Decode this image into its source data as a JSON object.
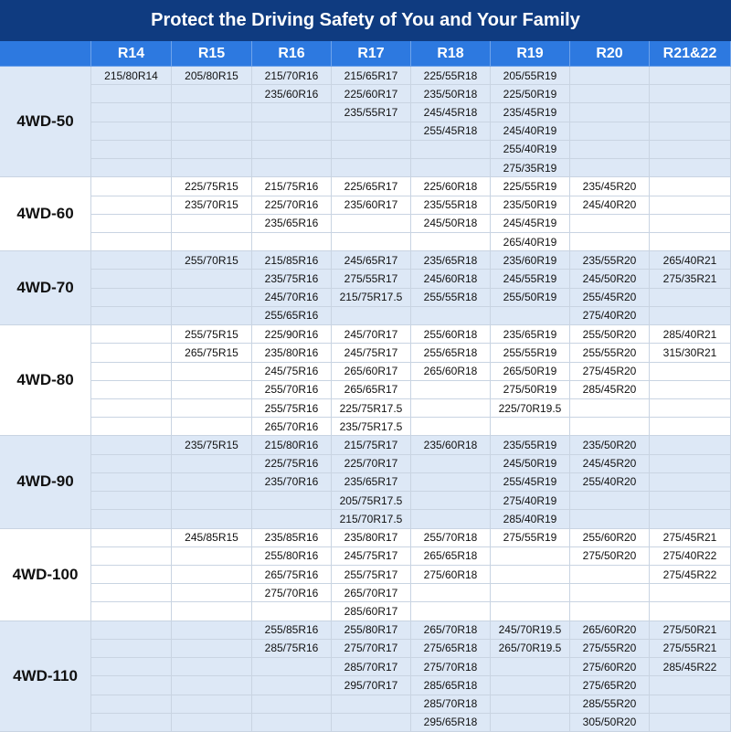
{
  "title": "Protect the Driving Safety of You and Your Family",
  "headers": [
    "R14",
    "R15",
    "R16",
    "R17",
    "R18",
    "R19",
    "R20",
    "R21&22"
  ],
  "groups": [
    {
      "label": "4WD-50",
      "columns": [
        [
          "215/80R14"
        ],
        [
          "205/80R15"
        ],
        [
          "215/70R16",
          "235/60R16"
        ],
        [
          "215/65R17",
          "225/60R17",
          "235/55R17"
        ],
        [
          "225/55R18",
          "235/50R18",
          "245/45R18",
          "255/45R18"
        ],
        [
          "205/55R19",
          "225/50R19",
          "235/45R19",
          "245/40R19",
          "255/40R19",
          "275/35R19"
        ],
        [],
        []
      ]
    },
    {
      "label": "4WD-60",
      "columns": [
        [],
        [
          "225/75R15",
          "235/70R15"
        ],
        [
          "215/75R16",
          "225/70R16",
          "235/65R16"
        ],
        [
          "225/65R17",
          "235/60R17"
        ],
        [
          "225/60R18",
          "235/55R18",
          "245/50R18"
        ],
        [
          "225/55R19",
          "235/50R19",
          "245/45R19",
          "265/40R19"
        ],
        [
          "235/45R20",
          "245/40R20"
        ],
        []
      ]
    },
    {
      "label": "4WD-70",
      "columns": [
        [],
        [
          "255/70R15"
        ],
        [
          "215/85R16",
          "235/75R16",
          "245/70R16",
          "255/65R16"
        ],
        [
          "245/65R17",
          "275/55R17",
          "215/75R17.5"
        ],
        [
          "235/65R18",
          "245/60R18",
          "255/55R18"
        ],
        [
          "235/60R19",
          "245/55R19",
          "255/50R19"
        ],
        [
          "235/55R20",
          "245/50R20",
          "255/45R20",
          "275/40R20"
        ],
        [
          "265/40R21",
          "275/35R21"
        ]
      ]
    },
    {
      "label": "4WD-80",
      "columns": [
        [],
        [
          "255/75R15",
          "265/75R15"
        ],
        [
          "225/90R16",
          "235/80R16",
          "245/75R16",
          "255/70R16",
          "255/75R16",
          "265/70R16"
        ],
        [
          "245/70R17",
          "245/75R17",
          "265/60R17",
          "265/65R17",
          "225/75R17.5",
          "235/75R17.5"
        ],
        [
          "255/60R18",
          "255/65R18",
          "265/60R18"
        ],
        [
          "235/65R19",
          "255/55R19",
          "265/50R19",
          "275/50R19",
          "225/70R19.5"
        ],
        [
          "255/50R20",
          "255/55R20",
          "275/45R20",
          "285/45R20"
        ],
        [
          "285/40R21",
          "315/30R21"
        ]
      ]
    },
    {
      "label": "4WD-90",
      "columns": [
        [],
        [
          "235/75R15"
        ],
        [
          "215/80R16",
          "225/75R16",
          "235/70R16"
        ],
        [
          "215/75R17",
          "225/70R17",
          "235/65R17",
          "205/75R17.5",
          "215/70R17.5"
        ],
        [
          "235/60R18"
        ],
        [
          "235/55R19",
          "245/50R19",
          "255/45R19",
          "275/40R19",
          "285/40R19"
        ],
        [
          "235/50R20",
          "245/45R20",
          "255/40R20"
        ],
        []
      ]
    },
    {
      "label": "4WD-100",
      "columns": [
        [],
        [
          "245/85R15"
        ],
        [
          "235/85R16",
          "255/80R16",
          "265/75R16",
          "275/70R16"
        ],
        [
          "235/80R17",
          "245/75R17",
          "255/75R17",
          "265/70R17",
          "285/60R17"
        ],
        [
          "255/70R18",
          "265/65R18",
          "275/60R18"
        ],
        [
          "275/55R19"
        ],
        [
          "255/60R20",
          "275/50R20"
        ],
        [
          "275/45R21",
          "275/40R22",
          "275/45R22"
        ]
      ]
    },
    {
      "label": "4WD-110",
      "columns": [
        [],
        [],
        [
          "255/85R16",
          "285/75R16"
        ],
        [
          "255/80R17",
          "275/70R17",
          "285/70R17",
          "295/70R17"
        ],
        [
          "265/70R18",
          "275/65R18",
          "275/70R18",
          "285/65R18",
          "285/70R18",
          "295/65R18"
        ],
        [
          "245/70R19.5",
          "265/70R19.5"
        ],
        [
          "265/60R20",
          "275/55R20",
          "275/60R20",
          "275/65R20",
          "285/55R20",
          "305/50R20"
        ],
        [
          "275/50R21",
          "275/55R21",
          "285/45R22"
        ]
      ]
    }
  ]
}
